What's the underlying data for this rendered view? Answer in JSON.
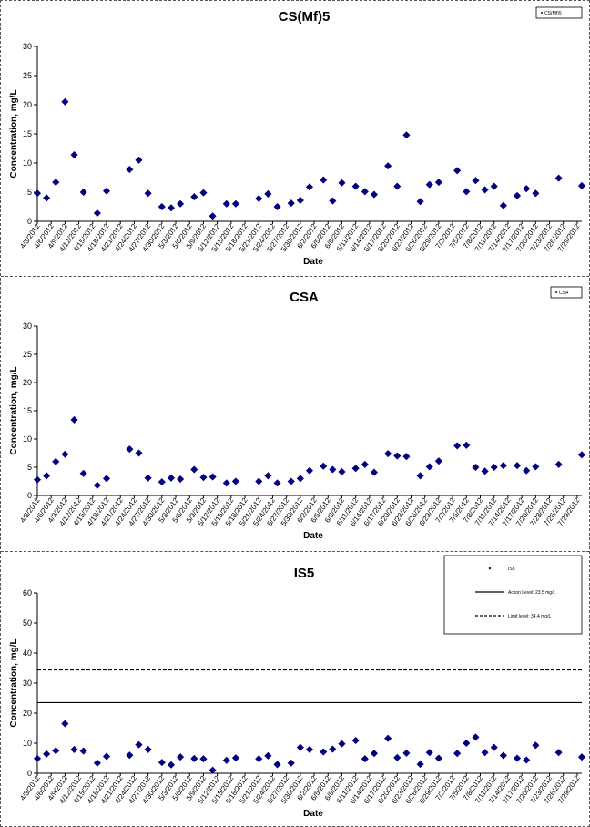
{
  "colors": {
    "marker": "#000080",
    "axis": "#000000"
  },
  "dates": [
    "4/3/2012",
    "4/6/2012",
    "4/9/2012",
    "4/12/2012",
    "4/15/2012",
    "4/18/2012",
    "4/21/2012",
    "4/24/2012",
    "4/27/2012",
    "4/30/2012",
    "5/3/2012",
    "5/6/2012",
    "5/9/2012",
    "5/12/2012",
    "5/15/2012",
    "5/18/2012",
    "5/21/2012",
    "5/24/2012",
    "5/27/2012",
    "5/30/2012",
    "6/2/2012",
    "6/5/2012",
    "6/8/2012",
    "6/11/2012",
    "6/14/2012",
    "6/17/2012",
    "6/20/2012",
    "6/23/2012",
    "6/26/2012",
    "6/29/2012",
    "7/2/2012",
    "7/5/2012",
    "7/8/2012",
    "7/11/2012",
    "7/14/2012",
    "7/17/2012",
    "7/20/2012",
    "7/23/2012",
    "7/26/2012",
    "7/29/2012"
  ],
  "chart_data": [
    {
      "type": "scatter",
      "title": "CS(Mf)5",
      "xlabel": "Date",
      "ylabel": "Concentration, mg/L",
      "ylim": [
        0,
        30
      ],
      "yticks": [
        0,
        5,
        10,
        15,
        20,
        25,
        30
      ],
      "xlim": [
        "2012-04-03",
        "2012-07-30"
      ],
      "legend": {
        "placement": "top-right",
        "entries": [
          "CS(Mf)5"
        ]
      },
      "series": [
        {
          "name": "CS(Mf)5",
          "x": [
            "2012-04-03",
            "2012-04-05",
            "2012-04-07",
            "2012-04-09",
            "2012-04-11",
            "2012-04-13",
            "2012-04-16",
            "2012-04-18",
            "2012-04-23",
            "2012-04-25",
            "2012-04-27",
            "2012-04-30",
            "2012-05-02",
            "2012-05-04",
            "2012-05-07",
            "2012-05-09",
            "2012-05-11",
            "2012-05-14",
            "2012-05-16",
            "2012-05-21",
            "2012-05-23",
            "2012-05-25",
            "2012-05-28",
            "2012-05-30",
            "2012-06-01",
            "2012-06-04",
            "2012-06-06",
            "2012-06-08",
            "2012-06-11",
            "2012-06-13",
            "2012-06-15",
            "2012-06-18",
            "2012-06-20",
            "2012-06-22",
            "2012-06-25",
            "2012-06-27",
            "2012-06-29",
            "2012-07-03",
            "2012-07-05",
            "2012-07-07",
            "2012-07-09",
            "2012-07-11",
            "2012-07-13",
            "2012-07-16",
            "2012-07-18",
            "2012-07-20",
            "2012-07-25",
            "2012-07-30"
          ],
          "y": [
            4.8,
            4.0,
            6.7,
            20.5,
            11.4,
            5.0,
            1.4,
            5.2,
            8.9,
            10.5,
            4.8,
            2.5,
            2.3,
            3.0,
            4.2,
            4.9,
            0.9,
            3.0,
            3.0,
            3.9,
            4.7,
            2.5,
            3.1,
            3.6,
            5.9,
            7.1,
            3.5,
            6.6,
            6.0,
            5.1,
            4.6,
            9.5,
            6.0,
            14.8,
            3.4,
            6.3,
            6.7,
            8.7,
            5.1,
            7.0,
            5.4,
            6.0,
            2.7,
            4.4,
            5.6,
            4.8,
            7.4,
            6.1
          ]
        }
      ]
    },
    {
      "type": "scatter",
      "title": "CSA",
      "xlabel": "Date",
      "ylabel": "Concentration, mg/L",
      "ylim": [
        0,
        30
      ],
      "yticks": [
        0,
        5,
        10,
        15,
        20,
        25,
        30
      ],
      "xlim": [
        "2012-04-03",
        "2012-07-30"
      ],
      "legend": {
        "placement": "top-right",
        "entries": [
          "CSA"
        ]
      },
      "series": [
        {
          "name": "CSA",
          "x": [
            "2012-04-03",
            "2012-04-05",
            "2012-04-07",
            "2012-04-09",
            "2012-04-11",
            "2012-04-13",
            "2012-04-16",
            "2012-04-18",
            "2012-04-23",
            "2012-04-25",
            "2012-04-27",
            "2012-04-30",
            "2012-05-02",
            "2012-05-04",
            "2012-05-07",
            "2012-05-09",
            "2012-05-11",
            "2012-05-14",
            "2012-05-16",
            "2012-05-21",
            "2012-05-23",
            "2012-05-25",
            "2012-05-28",
            "2012-05-30",
            "2012-06-01",
            "2012-06-04",
            "2012-06-06",
            "2012-06-08",
            "2012-06-11",
            "2012-06-13",
            "2012-06-15",
            "2012-06-18",
            "2012-06-20",
            "2012-06-22",
            "2012-06-25",
            "2012-06-27",
            "2012-06-29",
            "2012-07-03",
            "2012-07-05",
            "2012-07-07",
            "2012-07-09",
            "2012-07-11",
            "2012-07-13",
            "2012-07-16",
            "2012-07-18",
            "2012-07-20",
            "2012-07-25",
            "2012-07-30"
          ],
          "y": [
            2.8,
            3.5,
            6.0,
            7.3,
            13.4,
            3.9,
            1.8,
            3.0,
            8.2,
            7.5,
            3.1,
            2.4,
            3.1,
            2.9,
            4.6,
            3.2,
            3.3,
            2.2,
            2.5,
            2.5,
            3.5,
            2.2,
            2.5,
            3.0,
            4.4,
            5.2,
            4.6,
            4.2,
            4.8,
            5.5,
            4.1,
            7.4,
            7.0,
            6.9,
            3.5,
            5.1,
            6.1,
            8.8,
            8.9,
            5.0,
            4.3,
            5.0,
            5.3,
            5.3,
            4.4,
            5.1,
            5.5,
            7.2
          ]
        }
      ]
    },
    {
      "type": "scatter",
      "title": "IS5",
      "xlabel": "Date",
      "ylabel": "Concentration, mg/L",
      "ylim": [
        0,
        60
      ],
      "yticks": [
        0,
        10,
        20,
        30,
        40,
        50,
        60
      ],
      "xlim": [
        "2012-04-03",
        "2012-07-30"
      ],
      "legend": {
        "placement": "top-right",
        "entries": [
          "IS5",
          "Action Level: 23.5 mg/L",
          "Limit level: 34.4 mg/L"
        ]
      },
      "reference_lines": [
        {
          "name": "Action Level: 23.5 mg/L",
          "value": 23.5,
          "style": "solid"
        },
        {
          "name": "Limit level: 34.4 mg/L",
          "value": 34.4,
          "style": "dashed"
        }
      ],
      "series": [
        {
          "name": "IS5",
          "x": [
            "2012-04-03",
            "2012-04-05",
            "2012-04-07",
            "2012-04-09",
            "2012-04-11",
            "2012-04-13",
            "2012-04-16",
            "2012-04-18",
            "2012-04-23",
            "2012-04-25",
            "2012-04-27",
            "2012-04-30",
            "2012-05-02",
            "2012-05-04",
            "2012-05-07",
            "2012-05-09",
            "2012-05-11",
            "2012-05-14",
            "2012-05-16",
            "2012-05-21",
            "2012-05-23",
            "2012-05-25",
            "2012-05-28",
            "2012-05-30",
            "2012-06-01",
            "2012-06-04",
            "2012-06-06",
            "2012-06-08",
            "2012-06-11",
            "2012-06-13",
            "2012-06-15",
            "2012-06-18",
            "2012-06-20",
            "2012-06-22",
            "2012-06-25",
            "2012-06-27",
            "2012-06-29",
            "2012-07-03",
            "2012-07-05",
            "2012-07-07",
            "2012-07-09",
            "2012-07-11",
            "2012-07-13",
            "2012-07-16",
            "2012-07-18",
            "2012-07-20",
            "2012-07-25",
            "2012-07-30"
          ],
          "y": [
            4.9,
            6.4,
            7.5,
            16.5,
            7.9,
            7.4,
            3.4,
            5.6,
            6.0,
            9.5,
            7.9,
            3.6,
            2.8,
            5.4,
            4.9,
            4.8,
            1.0,
            4.3,
            5.1,
            4.8,
            5.8,
            2.9,
            3.4,
            8.6,
            7.9,
            7.1,
            8.0,
            9.8,
            10.9,
            4.8,
            6.6,
            11.6,
            5.2,
            6.7,
            3.0,
            6.9,
            5.0,
            6.6,
            10.0,
            12.0,
            6.9,
            8.6,
            5.9,
            5.0,
            4.4,
            9.3,
            6.9,
            5.4
          ]
        }
      ]
    }
  ]
}
